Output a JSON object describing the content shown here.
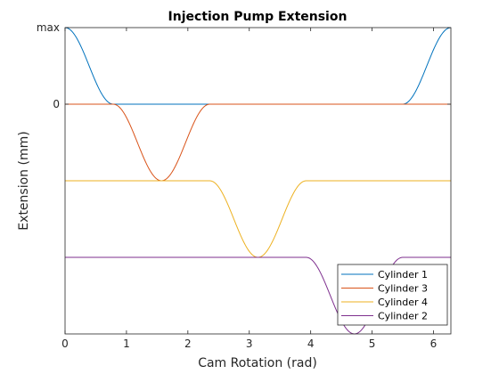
{
  "chart_data": {
    "type": "line",
    "title": "Injection Pump Extension",
    "xlabel": "Cam Rotation (rad)",
    "ylabel": "Extension (mm)",
    "xlim": [
      0,
      6.283
    ],
    "ylim": [
      -3,
      1
    ],
    "x_ticks": [
      0,
      1,
      2,
      3,
      4,
      5,
      6
    ],
    "y_ticks": [
      {
        "value": 1,
        "label": "max"
      },
      {
        "value": 0,
        "label": "0"
      }
    ],
    "grid": false,
    "legend_position": "bottom-right",
    "series": [
      {
        "name": "Cylinder 1",
        "color": "#0072BD",
        "baseline": 0,
        "direction": 1,
        "lobes": [
          [
            -0.785,
            0.785
          ],
          [
            5.498,
            7.069
          ]
        ]
      },
      {
        "name": "Cylinder 3",
        "color": "#D95319",
        "baseline": 0,
        "direction": -1,
        "lobes": [
          [
            0.785,
            2.356
          ]
        ]
      },
      {
        "name": "Cylinder 4",
        "color": "#EDB120",
        "baseline": -1,
        "direction": -1,
        "lobes": [
          [
            2.356,
            3.927
          ]
        ]
      },
      {
        "name": "Cylinder 2",
        "color": "#7E2F8E",
        "baseline": -2,
        "direction": -1,
        "lobes": [
          [
            3.927,
            5.498
          ]
        ]
      }
    ]
  }
}
